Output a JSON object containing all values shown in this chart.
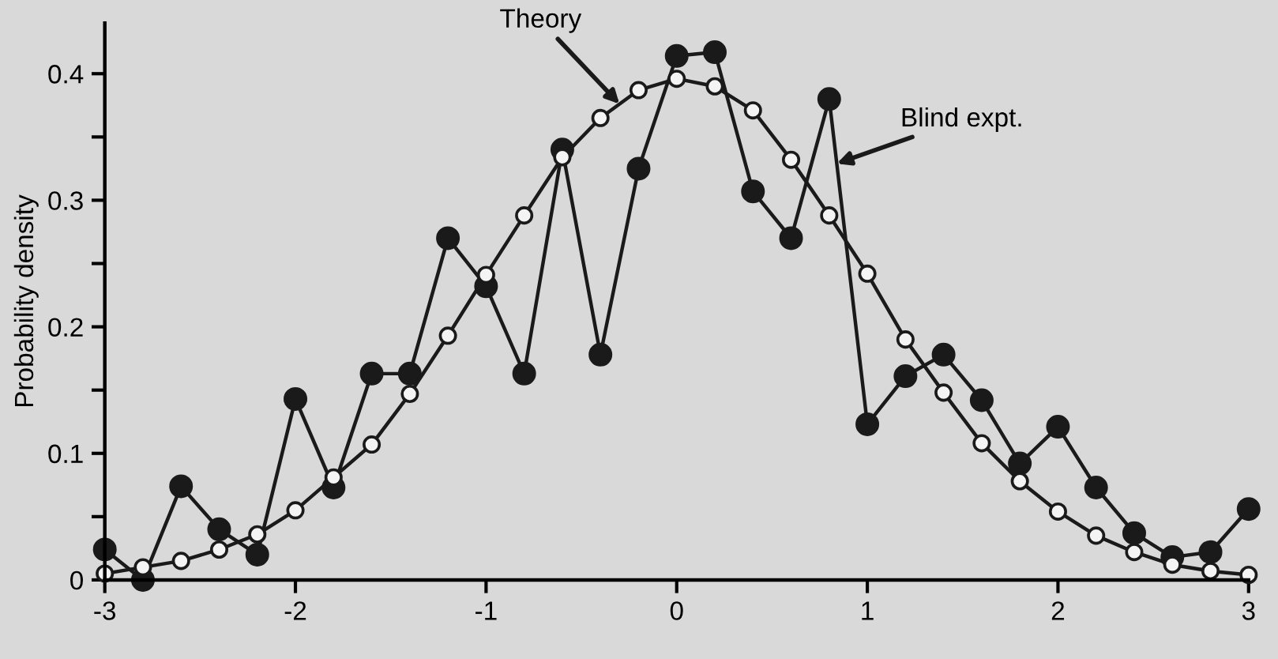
{
  "chart_data": {
    "type": "line",
    "ylabel": "Probability density",
    "x": [
      -3,
      -2.8,
      -2.6,
      -2.4,
      -2.2,
      -2,
      -1.8,
      -1.6,
      -1.4,
      -1.2,
      -1,
      -0.8,
      -0.6,
      -0.4,
      -0.2,
      0,
      0.2,
      0.4,
      0.6,
      0.8,
      1,
      1.2,
      1.4,
      1.6,
      1.8,
      2,
      2.2,
      2.4,
      2.6,
      2.8,
      3
    ],
    "series": [
      {
        "color": "#1a1a1a",
        "values": [
          0.024,
          0.0,
          0.074,
          0.04,
          0.02,
          0.143,
          0.073,
          0.163,
          0.163,
          0.27,
          0.232,
          0.163,
          0.34,
          0.178,
          0.325,
          0.414,
          0.417,
          0.307,
          0.27,
          0.38,
          0.123,
          0.161,
          0.178,
          0.142,
          0.092,
          0.121,
          0.073,
          0.037,
          0.018,
          0.022,
          0.056
        ]
      },
      {
        "color": "#f4f4f4",
        "values": [
          0.005,
          0.01,
          0.015,
          0.024,
          0.036,
          0.055,
          0.081,
          0.107,
          0.147,
          0.193,
          0.241,
          0.288,
          0.334,
          0.365,
          0.387,
          0.396,
          0.39,
          0.371,
          0.332,
          0.288,
          0.242,
          0.19,
          0.148,
          0.108,
          0.078,
          0.054,
          0.035,
          0.022,
          0.012,
          0.007,
          0.004
        ]
      }
    ],
    "annotations": [
      {
        "text": "Theory",
        "x": -0.3,
        "y": 0.376
      },
      {
        "text": "Blind expt.",
        "x": 0.84,
        "y": 0.329
      }
    ],
    "xlim": [
      -3,
      3
    ],
    "xticks": [
      -3,
      -2,
      -1,
      0,
      1,
      2,
      3
    ],
    "ylim": [
      0,
      0.44
    ],
    "yticks": [
      {
        "value": 0,
        "label": "0"
      },
      {
        "value": 0.05,
        "label": null
      },
      0.1,
      {
        "value": 0.15,
        "label": null
      },
      0.2,
      {
        "value": 0.25,
        "label": null
      },
      0.3,
      {
        "value": 0.35,
        "label": null
      },
      0.4
    ],
    "marker": "circle",
    "line_style": "solid",
    "grid": false,
    "legend": false
  }
}
